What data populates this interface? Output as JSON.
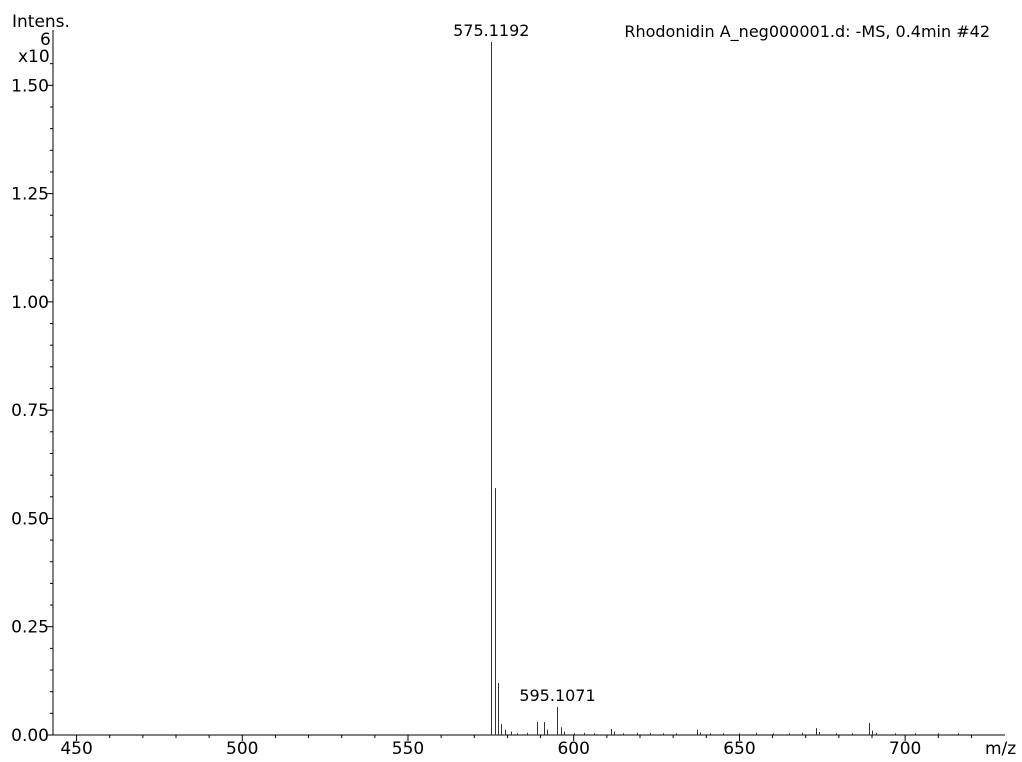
{
  "chart_data": {
    "type": "bar",
    "title": "Rhodonidin A_neg000001.d: -MS, 0.4min #42",
    "ylabel": "Intens.",
    "yunit_line1": "6",
    "yunit_line2": "x10",
    "xlabel": "m/z",
    "xlim": [
      445,
      725
    ],
    "ylim": [
      0,
      1.6
    ],
    "xticks": [
      450,
      500,
      550,
      600,
      650,
      700
    ],
    "yticks": [
      0.0,
      0.25,
      0.5,
      0.75,
      1.0,
      1.25,
      1.5
    ],
    "ytick_labels": [
      "0.00",
      "0.25",
      "0.50",
      "0.75",
      "1.00",
      "1.25",
      "1.50"
    ],
    "grid": false,
    "peaks": [
      {
        "mz": 575.1192,
        "intensity": 1.6,
        "label": "575.1192"
      },
      {
        "mz": 576.12,
        "intensity": 0.57
      },
      {
        "mz": 577.12,
        "intensity": 0.12
      },
      {
        "mz": 578.12,
        "intensity": 0.025
      },
      {
        "mz": 579.12,
        "intensity": 0.012
      },
      {
        "mz": 581.1,
        "intensity": 0.008
      },
      {
        "mz": 589.0,
        "intensity": 0.03
      },
      {
        "mz": 591.0,
        "intensity": 0.03
      },
      {
        "mz": 592.0,
        "intensity": 0.012
      },
      {
        "mz": 595.1071,
        "intensity": 0.065,
        "label": "595.1071"
      },
      {
        "mz": 596.1,
        "intensity": 0.018
      },
      {
        "mz": 597.1,
        "intensity": 0.008
      },
      {
        "mz": 611.1,
        "intensity": 0.014
      },
      {
        "mz": 612.1,
        "intensity": 0.008
      },
      {
        "mz": 637.1,
        "intensity": 0.012
      },
      {
        "mz": 638.1,
        "intensity": 0.006
      },
      {
        "mz": 673.0,
        "intensity": 0.016
      },
      {
        "mz": 674.0,
        "intensity": 0.007
      },
      {
        "mz": 689.1,
        "intensity": 0.028
      },
      {
        "mz": 690.1,
        "intensity": 0.01
      },
      {
        "mz": 691.1,
        "intensity": 0.005
      }
    ],
    "noise_peaks": [
      {
        "mz": 583.0,
        "intensity": 0.004
      },
      {
        "mz": 586.0,
        "intensity": 0.005
      },
      {
        "mz": 600.0,
        "intensity": 0.004
      },
      {
        "mz": 603.0,
        "intensity": 0.005
      },
      {
        "mz": 606.0,
        "intensity": 0.004
      },
      {
        "mz": 615.0,
        "intensity": 0.004
      },
      {
        "mz": 619.0,
        "intensity": 0.005
      },
      {
        "mz": 623.0,
        "intensity": 0.005
      },
      {
        "mz": 627.0,
        "intensity": 0.004
      },
      {
        "mz": 631.0,
        "intensity": 0.004
      },
      {
        "mz": 641.0,
        "intensity": 0.004
      },
      {
        "mz": 645.0,
        "intensity": 0.004
      },
      {
        "mz": 650.0,
        "intensity": 0.004
      },
      {
        "mz": 655.0,
        "intensity": 0.005
      },
      {
        "mz": 660.0,
        "intensity": 0.004
      },
      {
        "mz": 665.0,
        "intensity": 0.004
      },
      {
        "mz": 669.0,
        "intensity": 0.005
      },
      {
        "mz": 679.0,
        "intensity": 0.004
      },
      {
        "mz": 684.0,
        "intensity": 0.004
      },
      {
        "mz": 697.0,
        "intensity": 0.004
      },
      {
        "mz": 703.0,
        "intensity": 0.004
      },
      {
        "mz": 710.0,
        "intensity": 0.004
      },
      {
        "mz": 716.0,
        "intensity": 0.004
      }
    ]
  }
}
